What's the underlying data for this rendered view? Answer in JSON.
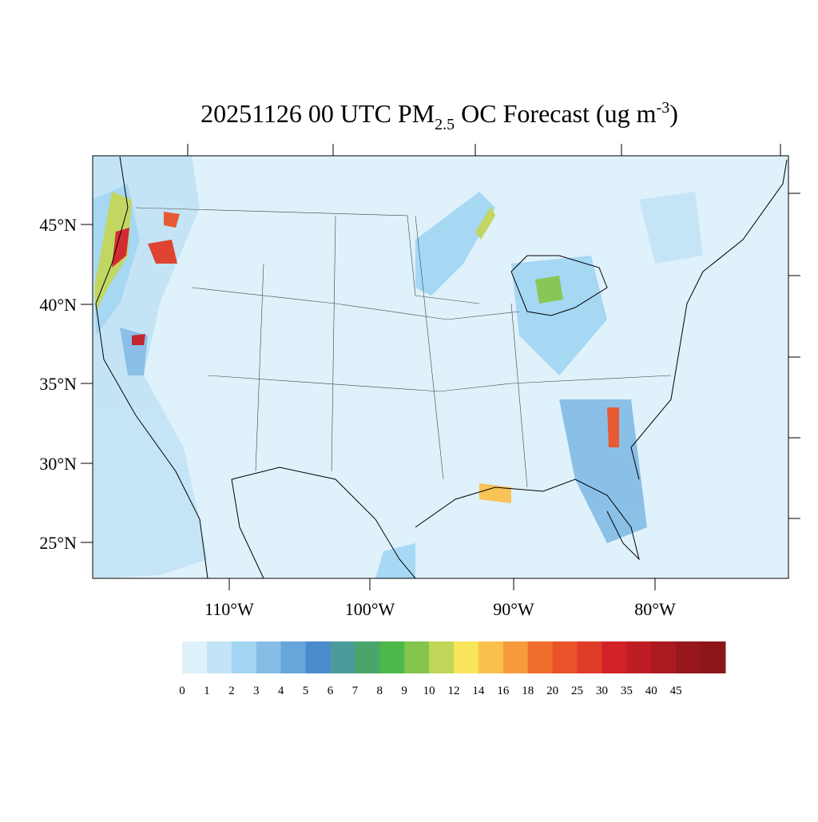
{
  "title": {
    "main": "20251126 00 UTC PM",
    "sub": "2.5",
    "rest": " OC Forecast (ug m",
    "sup": "-3",
    "end": ")"
  },
  "axes": {
    "lat_labels": [
      "25°N",
      "30°N",
      "35°N",
      "40°N",
      "45°N"
    ],
    "lon_labels": [
      "110°W",
      "100°W",
      "90°W",
      "80°W"
    ]
  },
  "colorbar": {
    "levels": [
      0,
      1,
      2,
      3,
      4,
      5,
      6,
      7,
      8,
      9,
      10,
      12,
      14,
      16,
      18,
      20,
      25,
      30,
      35,
      40,
      45
    ],
    "colors": [
      "#dff1fa",
      "#c3e4f6",
      "#a3d6f3",
      "#86bde6",
      "#66a6da",
      "#4a8ccd",
      "#4a9b9a",
      "#4aa56a",
      "#4db84a",
      "#84c54e",
      "#c0d659",
      "#f8e55a",
      "#f9c04e",
      "#f79a3e",
      "#f06e2c",
      "#e8532a",
      "#e03b28",
      "#d32129",
      "#bf1d24",
      "#aa1a1f",
      "#98171c",
      "#8c151a"
    ]
  }
}
